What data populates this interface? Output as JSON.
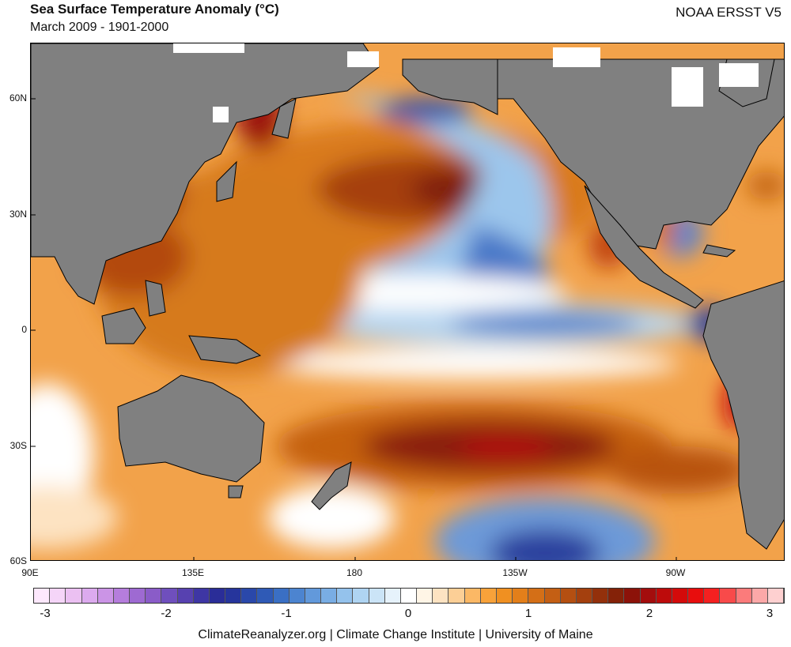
{
  "header": {
    "title": "Sea Surface Temperature Anomaly (°C)",
    "subtitle": "March 2009 - 1901-2000",
    "dataset": "NOAA ERSST V5"
  },
  "axes": {
    "y_labels": [
      "60N",
      "30N",
      "0",
      "30S",
      "60S"
    ],
    "x_labels": [
      "90E",
      "135E",
      "180",
      "135W",
      "90W"
    ]
  },
  "legend": {
    "tick_labels": [
      "-3",
      "-2",
      "-1",
      "0",
      "1",
      "2",
      "3"
    ],
    "swatch_colors": [
      "#fde8fd",
      "#f5d5f8",
      "#ebc0f2",
      "#dcaaee",
      "#cb94e6",
      "#b57ddc",
      "#9e6ad2",
      "#8a5cc8",
      "#6f4fbd",
      "#5741b0",
      "#3e36a4",
      "#2a2d98",
      "#26359c",
      "#2a48aa",
      "#2f5ab6",
      "#3a6fc4",
      "#4c84d0",
      "#6299db",
      "#79ade4",
      "#94c2ec",
      "#afd4f2",
      "#cbe4f7",
      "#e6f2fb",
      "#ffffff",
      "#fff5e6",
      "#fde3c2",
      "#fccf96",
      "#fbb865",
      "#f8a23a",
      "#f09021",
      "#e37f1a",
      "#d46f17",
      "#c45f14",
      "#b44f11",
      "#a4400e",
      "#93300b",
      "#842208",
      "#8c1209",
      "#a30d0d",
      "#bd0b0b",
      "#d40a0a",
      "#e80d0d",
      "#f42020",
      "#f84a4a",
      "#fb7b7b",
      "#fca8a8",
      "#fed0d0"
    ]
  },
  "map_colors": {
    "land": "#808080",
    "neutral": "#ffffff"
  },
  "footer": {
    "credit": "ClimateReanalyzer.org | Climate Change Institute | University of Maine"
  }
}
